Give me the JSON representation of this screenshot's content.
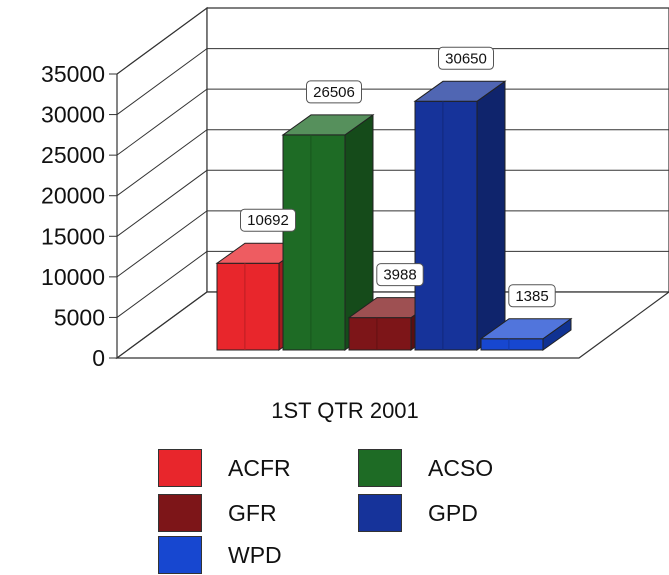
{
  "chart_data": {
    "type": "bar",
    "style": "3d",
    "categories": [
      "1ST QTR 2001"
    ],
    "series": [
      {
        "name": "ACFR",
        "values": [
          10692
        ],
        "color": "#e8262c"
      },
      {
        "name": "ACSO",
        "values": [
          26506
        ],
        "color": "#1e6b25"
      },
      {
        "name": "GFR",
        "values": [
          3988
        ],
        "color": "#7d1518"
      },
      {
        "name": "GPD",
        "values": [
          30650
        ],
        "color": "#16339a"
      },
      {
        "name": "WPD",
        "values": [
          1385
        ],
        "color": "#1747d0"
      }
    ],
    "yticks": [
      "0",
      "5000",
      "10000",
      "15000",
      "20000",
      "25000",
      "30000",
      "35000"
    ],
    "ylim": [
      0,
      35000
    ],
    "grid": true,
    "legend_position": "bottom",
    "title": "",
    "xlabel": "",
    "ylabel": ""
  },
  "legend": {
    "items": [
      {
        "label": "ACFR",
        "color": "#e8262c"
      },
      {
        "label": "ACSO",
        "color": "#1e6b25"
      },
      {
        "label": "GFR",
        "color": "#7d1518"
      },
      {
        "label": "GPD",
        "color": "#16339a"
      },
      {
        "label": "WPD",
        "color": "#1747d0"
      }
    ]
  }
}
